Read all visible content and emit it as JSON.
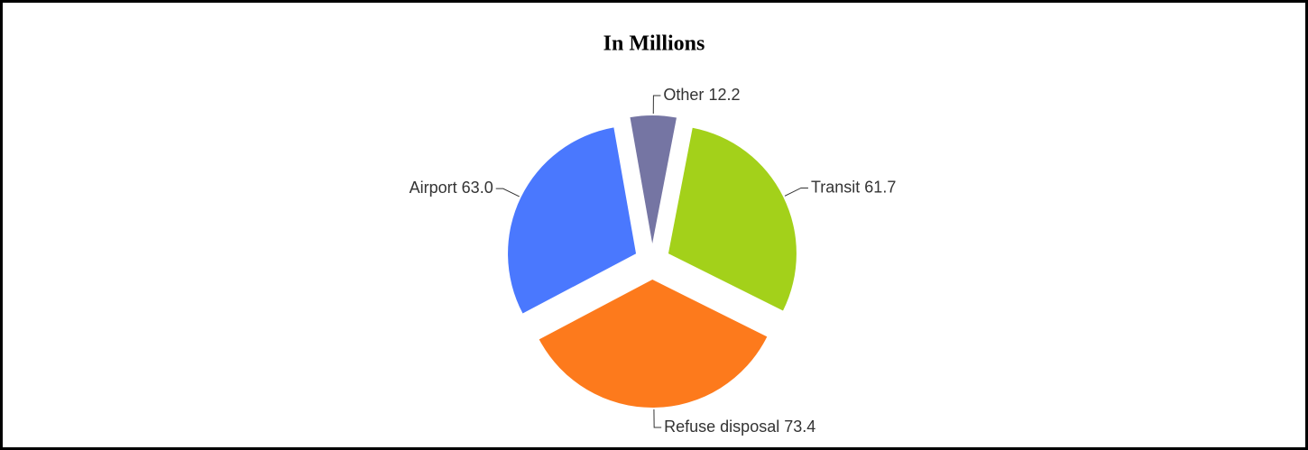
{
  "chart_data": {
    "type": "pie",
    "title": "In Millions",
    "categories": [
      "Other",
      "Transit",
      "Refuse disposal",
      "Airport"
    ],
    "values": [
      12.2,
      61.7,
      73.4,
      63.0
    ],
    "value_labels": [
      "12.2",
      "61.7",
      "73.4",
      "63.0"
    ],
    "colors": [
      "#7575a3",
      "#a3d11a",
      "#fd7a1c",
      "#4a78fe"
    ]
  }
}
